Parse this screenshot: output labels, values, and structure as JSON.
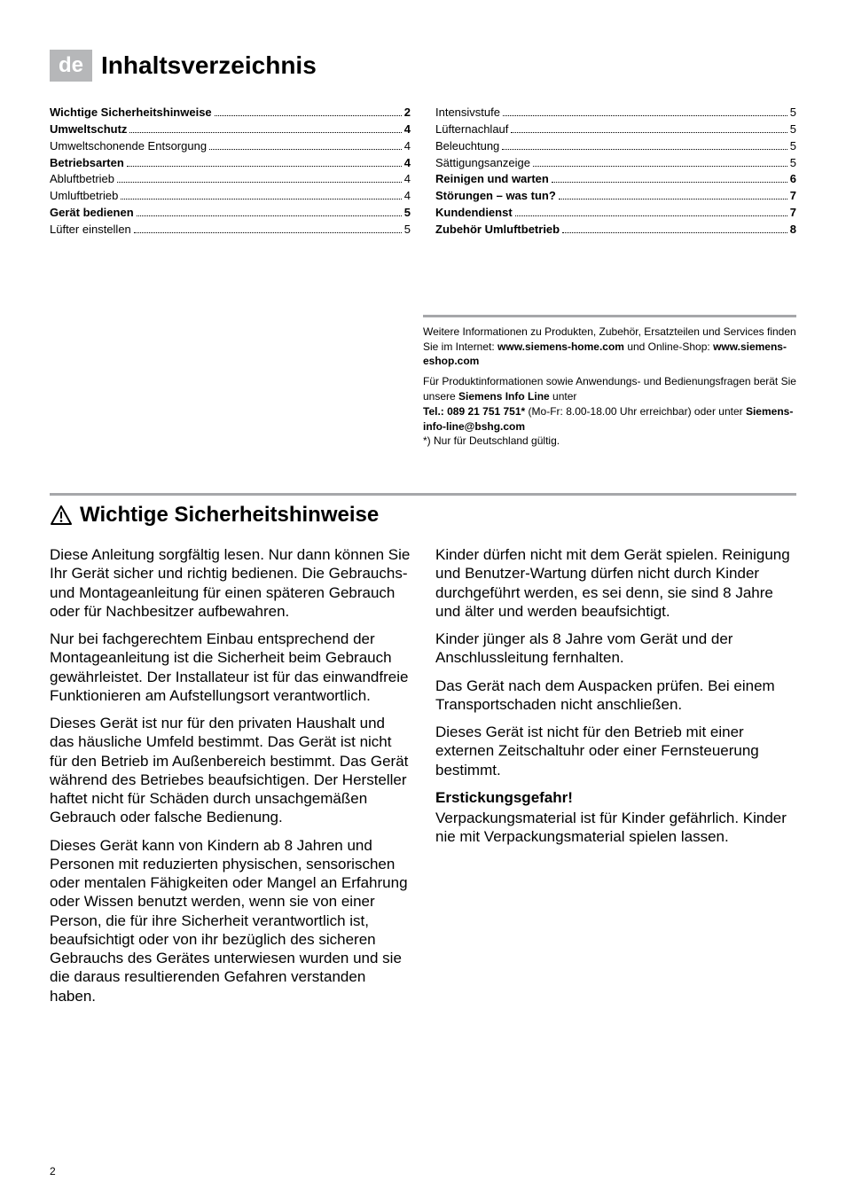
{
  "colors": {
    "badge_bg": "#b6b7b9",
    "badge_fg": "#ffffff",
    "rule": "#a6a7aa",
    "text": "#000000"
  },
  "header": {
    "lang_code": "de",
    "title": "Inhaltsverzeichnis"
  },
  "toc": {
    "left": [
      {
        "label": "Wichtige Sicherheitshinweise",
        "page": "2",
        "bold": true
      },
      {
        "label": "Umweltschutz",
        "page": "4",
        "bold": true
      },
      {
        "label": "Umweltschonende Entsorgung",
        "page": "4",
        "bold": false
      },
      {
        "label": "Betriebsarten",
        "page": "4",
        "bold": true
      },
      {
        "label": "Abluftbetrieb",
        "page": "4",
        "bold": false
      },
      {
        "label": "Umluftbetrieb",
        "page": "4",
        "bold": false
      },
      {
        "label": "Gerät bedienen",
        "page": "5",
        "bold": true
      },
      {
        "label": "Lüfter einstellen",
        "page": "5",
        "bold": false
      }
    ],
    "right": [
      {
        "label": "Intensivstufe",
        "page": "5",
        "bold": false
      },
      {
        "label": "Lüfternachlauf",
        "page": "5",
        "bold": false
      },
      {
        "label": "Beleuchtung",
        "page": "5",
        "bold": false
      },
      {
        "label": "Sättigungsanzeige",
        "page": "5",
        "bold": false
      },
      {
        "label": "Reinigen und warten",
        "page": "6",
        "bold": true
      },
      {
        "label": "Störungen – was tun?",
        "page": "7",
        "bold": true
      },
      {
        "label": "Kundendienst",
        "page": "7",
        "bold": true
      },
      {
        "label": "Zubehör Umluftbetrieb",
        "page": "8",
        "bold": true
      }
    ]
  },
  "info_box": {
    "p1_a": "Weitere Informationen zu Produkten, Zubehör, Ersatzteilen und Services finden Sie im Internet: ",
    "p1_b": "www.siemens-home.com",
    "p1_c": " und Online-Shop: ",
    "p1_d": "www.siemens-eshop.com",
    "p2_a": "Für Produktinformationen sowie Anwendungs- und Bedienungsfragen berät Sie unsere ",
    "p2_b": "Siemens Info Line",
    "p2_c": " unter",
    "p3_a": "Tel.: 089 21 751 751*",
    "p3_b": " (Mo-Fr: 8.00-18.00 Uhr erreichbar) oder unter ",
    "p3_c": "Siemens-info-line@bshg.com",
    "p4": "*) Nur für Deutschland gültig."
  },
  "safety": {
    "title": "Wichtige Sicherheitshinweise",
    "left": [
      "Diese Anleitung sorgfältig lesen. Nur dann können Sie Ihr Gerät sicher und richtig bedienen. Die Gebrauchs- und Montageanleitung für einen späteren Gebrauch oder für Nachbesitzer aufbewahren.",
      "Nur bei fachgerechtem Einbau entsprechend der Montageanleitung ist die Sicherheit beim Gebrauch gewährleistet. Der Installateur ist für das einwandfreie Funktionieren am Aufstellungsort verantwortlich.",
      "Dieses Gerät ist nur für den privaten Haushalt und das häusliche Umfeld bestimmt. Das Gerät ist nicht für den Betrieb im Außenbereich bestimmt. Das Gerät während des Betriebes beaufsichtigen. Der Hersteller haftet nicht für Schäden durch unsachgemäßen Gebrauch oder falsche Bedienung.",
      "Dieses Gerät kann von Kindern ab 8 Jahren und Personen mit reduzierten physischen, sensorischen oder mentalen Fähigkeiten oder Mangel an Erfahrung oder Wissen benutzt werden, wenn sie von einer Person, die für ihre Sicherheit verantwortlich ist, beaufsichtigt oder von ihr bezüglich des sicheren Gebrauchs des Gerätes unterwiesen wurden und sie die daraus resultierenden Gefahren verstanden haben."
    ],
    "right": [
      "Kinder dürfen nicht mit dem Gerät spielen. Reinigung und Benutzer-Wartung dürfen nicht durch Kinder durchgeführt werden, es sei denn, sie sind 8 Jahre und älter und werden beaufsichtigt.",
      "Kinder jünger als 8 Jahre vom Gerät und der Anschlussleitung fernhalten.",
      "Das Gerät nach dem Auspacken prüfen. Bei einem Transportschaden nicht anschließen.",
      "Dieses Gerät ist nicht für den Betrieb mit einer externen Zeitschaltuhr oder einer Fernsteuerung bestimmt."
    ],
    "danger_heading": "Erstickungsgefahr!",
    "danger_text": "Verpackungsmaterial ist für Kinder gefährlich. Kinder nie mit Verpackungsmaterial spielen lassen."
  },
  "page_number": "2"
}
